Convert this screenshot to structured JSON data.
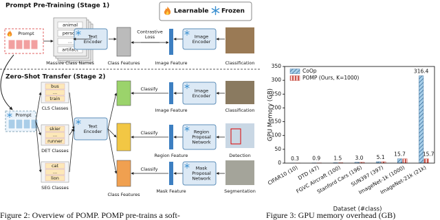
{
  "legend": {
    "learnable": "Learnable",
    "frozen": "Frozen"
  },
  "stage1": {
    "title": "Prompt Pre-Training (Stage 1)",
    "prompt": "Prompt",
    "class_names": [
      "animal",
      "person",
      "...",
      "artifact"
    ],
    "class_names_label": "Massive Class Names",
    "text_encoder": [
      "Text",
      "Encoder"
    ],
    "class_features": "Class Features",
    "loss": [
      "Contrastive",
      "Loss"
    ],
    "image_feature": "Image Feature",
    "image_encoder": [
      "Image",
      "Encoder"
    ],
    "task": "Classification"
  },
  "stage2": {
    "title": "Zero-Shot Transfer (Stage 2)",
    "prompt": "Prompt",
    "text_encoder": [
      "Text",
      "Encoder"
    ],
    "class_features": "Class Features",
    "branches": [
      {
        "classes": [
          "bus",
          "...",
          "train"
        ],
        "classes_label": "CLS Classes",
        "action": "Classify",
        "feature": "Image Feature",
        "encoder": [
          "Image",
          "Encoder"
        ],
        "task": "Classification"
      },
      {
        "classes": [
          "skier",
          "...",
          "runner"
        ],
        "classes_label": "DET Classes",
        "action": "Classify",
        "feature": "Region Feature",
        "encoder": [
          "Region",
          "Proposal",
          "Network"
        ],
        "task": "Detection"
      },
      {
        "classes": [
          "cat",
          "...",
          "lion"
        ],
        "classes_label": "SEG Classes",
        "action": "Classify",
        "feature": "Mask Feature",
        "encoder": [
          "Mask",
          "Proposal",
          "Network"
        ],
        "task": "Segmentation"
      }
    ]
  },
  "captions": [
    "Figure 2: Overview of POMP. POMP pre-trains a soft-",
    "Figure 3: GPU memory overhead (GB)"
  ],
  "chart_data": {
    "type": "bar",
    "ylabel": "GPU Memory (GB)",
    "xlabel": "Dataset (#class)",
    "categories": [
      "CIFAR10 (10)",
      "DTD (47)",
      "FGVC Aircraft (100)",
      "Stanford Cars (196)",
      "SUN397 (397)",
      "ImageNet-1k (1000)",
      "ImageNet-21k (21k)"
    ],
    "series": [
      {
        "name": "CoOp",
        "color": "#a9d0ea",
        "hatch_color": "#2a5f8f",
        "values": [
          0.3,
          0.9,
          1.5,
          3.0,
          5.1,
          15.7,
          316.4
        ],
        "value_labels": [
          "0.3",
          "0.9",
          "1.5",
          "3.0",
          "5.1",
          "15.7",
          "316.4"
        ]
      },
      {
        "name": "POMP (Ours, K=1000)",
        "color": "#f7d4d4",
        "hatch_color": "#c0392b",
        "values": [
          0.3,
          0.9,
          1.5,
          3.0,
          5.1,
          15.7,
          15.7
        ],
        "value_labels": [
          null,
          null,
          null,
          null,
          null,
          null,
          "15.7"
        ]
      }
    ],
    "ylim": [
      0,
      350
    ],
    "yticks": [
      0,
      50,
      100,
      150,
      200,
      250,
      300,
      350
    ],
    "legend": "upper left"
  }
}
